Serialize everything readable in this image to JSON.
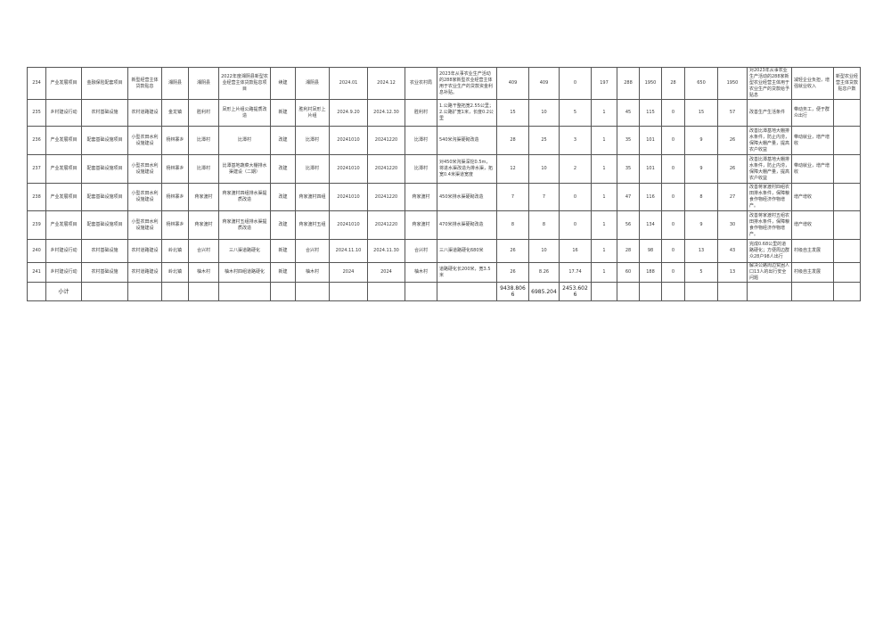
{
  "table": {
    "rows": [
      [
        "234",
        "产业发展项目",
        "金融保险配套项目",
        "新型经营主体贷款贴息",
        "湘阴县",
        "湘阴县",
        "2022年度湘阴县新型农业经营主体贷款贴息项目",
        "续建",
        "湘阴县",
        "2024.01",
        "2024.12",
        "农业农村局",
        "2023年从事农业生产活动的288家新型农业经营主体用于农业生产的贷款资金利息补贴。",
        "409",
        "409",
        "0",
        "197",
        "288",
        "1950",
        "28",
        "650",
        "1950",
        "对2023年从事农业生产活动的288家新型农业经营主体用于农业生产的贷款给予贴息",
        "减轻企业负担，增强就业收入",
        "新型农业经营主体贷款贴息户数"
      ],
      [
        "235",
        "乡村建设行动",
        "农村基础设施",
        "农村道路建设",
        "金龙镇",
        "胜利村",
        "凤形上片组公路提质改造",
        "新建",
        "胜利村凤形上片组",
        "2024.9.20",
        "2024.12.30",
        "胜利村",
        "1.公路干整拓宽2.55公里；2.公路扩宽1米，长度0.2公里",
        "15",
        "10",
        "5",
        "1",
        "45",
        "115",
        "0",
        "15",
        "57",
        "改善生产生活条件",
        "带动务工，便于群众出行",
        ""
      ],
      [
        "236",
        "产业发展项目",
        "配套基础设施项目",
        "小型农田水利设施建设",
        "杨林寨乡",
        "比潭村",
        "比潭村",
        "改建",
        "比潭村",
        "20241010",
        "20241220",
        "比潭村",
        "540米沟渠硬砌改造",
        "28",
        "25",
        "3",
        "1",
        "35",
        "101",
        "0",
        "9",
        "26",
        "改善比潭基地大棚排水条件，防止内涝，保障大棚产量，提高农户收益",
        "带动就业，增产增收",
        ""
      ],
      [
        "237",
        "产业发展项目",
        "配套基础设施项目",
        "小型农田水利设施建设",
        "杨林寨乡",
        "比潭村",
        "比潭基地蔬菜大棚排水渠建设（二期）",
        "改建",
        "比潭村",
        "20241010",
        "20241220",
        "比潭村",
        "对450米沟渠深挖0.5m，将进水渠改造为排水渠，拓宽0.4米渠道宽度",
        "12",
        "10",
        "2",
        "1",
        "35",
        "101",
        "0",
        "9",
        "26",
        "改善比潭基地大棚排水条件，防止内涝，保障大棚产量，提高农户收益",
        "带动就业，增产增收",
        ""
      ],
      [
        "238",
        "产业发展项目",
        "配套基础设施项目",
        "小型农田水利设施建设",
        "杨林寨乡",
        "蒋家渡村",
        "蒋家渡村四组排水渠提质改造",
        "改建",
        "蒋家渡村四组",
        "20241010",
        "20241220",
        "蒋家渡村",
        "450米排水渠硬砌改造",
        "7",
        "7",
        "0",
        "1",
        "47",
        "116",
        "0",
        "8",
        "27",
        "改善蒋家渡村四组农田排水条件，保障粮食作物经济作物增产。",
        "增产增收",
        ""
      ],
      [
        "239",
        "产业发展项目",
        "配套基础设施项目",
        "小型农田水利设施建设",
        "杨林寨乡",
        "蒋家渡村",
        "蒋家渡村五组排水渠提质改造",
        "改建",
        "蒋家渡村五组",
        "20241010",
        "20241220",
        "蒋家渡村",
        "470米排水渠硬砌改造",
        "8",
        "8",
        "0",
        "1",
        "56",
        "134",
        "0",
        "9",
        "30",
        "改善蒋家渡村五组农田排水条件，保障粮食作物经济作物增产。",
        "增产增收",
        ""
      ],
      [
        "240",
        "乡村建设行动",
        "农村基础设施",
        "农村道路建设",
        "岭北镇",
        "合兴村",
        "三八渠道路硬化",
        "新建",
        "合兴村",
        "2024.11.10",
        "2024.11.30",
        "合兴村",
        "三八渠道路硬化680米",
        "26",
        "10",
        "16",
        "1",
        "28",
        "98",
        "0",
        "13",
        "43",
        "完成0.68公里的道路硬化；方便周边群众28户98人出行",
        "村级自主发展",
        ""
      ],
      [
        "241",
        "乡村建设行动",
        "农村基础设施",
        "农村道路建设",
        "岭北镇",
        "柚木村",
        "柚木村四组道路硬化",
        "新建",
        "柚木村",
        "2024",
        "2024",
        "柚木村",
        "道路硬化长200米，宽3.5米",
        "26",
        "8.26",
        "17.74",
        "1",
        "60",
        "188",
        "0",
        "5",
        "13",
        "解决公路周边贫困人口13人的出行安全问题",
        "村级自主发展",
        ""
      ]
    ],
    "subtotal": [
      "",
      "小计",
      "",
      "",
      "",
      "",
      "",
      "",
      "",
      "",
      "",
      "",
      "",
      "9438.8066",
      "6985.204",
      "2453.6026",
      "",
      "",
      "",
      "",
      "",
      "",
      "",
      "",
      ""
    ]
  }
}
